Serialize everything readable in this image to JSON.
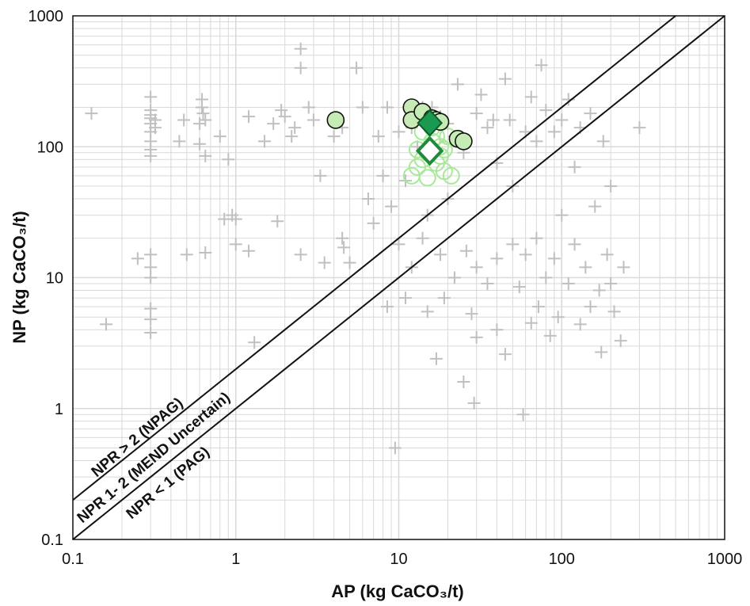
{
  "chart_data": {
    "type": "scatter",
    "xscale": "log",
    "yscale": "log",
    "xlim": [
      0.1,
      1000
    ],
    "ylim": [
      0.1,
      1000
    ],
    "grid": true,
    "xlabel": "AP (kg CaCO₃/t)",
    "ylabel": "NP (kg CaCO₃/t)",
    "xticks": [
      "0.1",
      "1",
      "10",
      "100",
      "1000"
    ],
    "yticks": [
      "0.1",
      "1",
      "10",
      "100",
      "1000"
    ],
    "reference_lines": [
      {
        "label": "NPR > 2 (NPAG)",
        "npr": 2
      },
      {
        "label": "NPR 1- 2 (MEND Uncertain)",
        "npr": null
      },
      {
        "label": "NPR < 1 (PAG)",
        "npr": 1
      }
    ],
    "colors": {
      "background_points": "#c0c0c0",
      "light_green_circles": "#a8e89a",
      "filled_circles": "#c6ebb5",
      "diamond_filled": "#1a9a50",
      "diamond_outline": "#1e8a3a"
    },
    "series": [
      {
        "marker": "plus",
        "points": [
          [
            0.13,
            180
          ],
          [
            0.16,
            4.4
          ],
          [
            0.25,
            14
          ],
          [
            0.3,
            85
          ],
          [
            0.3,
            95
          ],
          [
            0.3,
            110
          ],
          [
            0.3,
            130
          ],
          [
            0.3,
            150
          ],
          [
            0.3,
            165
          ],
          [
            0.3,
            175
          ],
          [
            0.3,
            190
          ],
          [
            0.3,
            240
          ],
          [
            0.3,
            15
          ],
          [
            0.3,
            12
          ],
          [
            0.3,
            10
          ],
          [
            0.3,
            5.8
          ],
          [
            0.3,
            4.8
          ],
          [
            0.3,
            3.8
          ],
          [
            0.32,
            140
          ],
          [
            0.32,
            160
          ],
          [
            0.45,
            110
          ],
          [
            0.48,
            160
          ],
          [
            0.5,
            15
          ],
          [
            0.6,
            150
          ],
          [
            0.6,
            105
          ],
          [
            0.62,
            230
          ],
          [
            0.62,
            200
          ],
          [
            0.63,
            180
          ],
          [
            0.65,
            160
          ],
          [
            0.65,
            85
          ],
          [
            0.65,
            15.5
          ],
          [
            0.8,
            120
          ],
          [
            0.85,
            28
          ],
          [
            0.9,
            80
          ],
          [
            0.95,
            30
          ],
          [
            1.0,
            18
          ],
          [
            1.0,
            28
          ],
          [
            1.2,
            170
          ],
          [
            1.2,
            16
          ],
          [
            1.3,
            3.2
          ],
          [
            1.5,
            110
          ],
          [
            1.7,
            150
          ],
          [
            1.8,
            27
          ],
          [
            1.9,
            190
          ],
          [
            2.0,
            170
          ],
          [
            2.2,
            120
          ],
          [
            2.3,
            140
          ],
          [
            2.5,
            560
          ],
          [
            2.5,
            400
          ],
          [
            2.5,
            15
          ],
          [
            2.8,
            200
          ],
          [
            3.0,
            160
          ],
          [
            3.3,
            60
          ],
          [
            3.5,
            13
          ],
          [
            4.0,
            120
          ],
          [
            4.5,
            20
          ],
          [
            4.6,
            17
          ],
          [
            4.5,
            140
          ],
          [
            5.0,
            13
          ],
          [
            5.5,
            400
          ],
          [
            6.0,
            200
          ],
          [
            6.5,
            40
          ],
          [
            7.0,
            26
          ],
          [
            7.5,
            120
          ],
          [
            8.0,
            60
          ],
          [
            8.5,
            6.0
          ],
          [
            8.5,
            200
          ],
          [
            9.0,
            35
          ],
          [
            9.5,
            0.5
          ],
          [
            10,
            18
          ],
          [
            10,
            130
          ],
          [
            11,
            7.0
          ],
          [
            11,
            55
          ],
          [
            12,
            12
          ],
          [
            12,
            140
          ],
          [
            13,
            100
          ],
          [
            14,
            20
          ],
          [
            14,
            200
          ],
          [
            15,
            30
          ],
          [
            15,
            5.5
          ],
          [
            16,
            200
          ],
          [
            17,
            2.4
          ],
          [
            18,
            170
          ],
          [
            18,
            15
          ],
          [
            19,
            7
          ],
          [
            20,
            40
          ],
          [
            20,
            150
          ],
          [
            22,
            120
          ],
          [
            22,
            10
          ],
          [
            23,
            300
          ],
          [
            25,
            1.6
          ],
          [
            25,
            90
          ],
          [
            26,
            16
          ],
          [
            28,
            5.3
          ],
          [
            29,
            1.1
          ],
          [
            30,
            180
          ],
          [
            30,
            12
          ],
          [
            30,
            3.5
          ],
          [
            32,
            250
          ],
          [
            35,
            140
          ],
          [
            35,
            9
          ],
          [
            38,
            160
          ],
          [
            40,
            4.0
          ],
          [
            40,
            75
          ],
          [
            40,
            14
          ],
          [
            45,
            2.6
          ],
          [
            45,
            330
          ],
          [
            48,
            160
          ],
          [
            50,
            50
          ],
          [
            50,
            18
          ],
          [
            55,
            8.5
          ],
          [
            58,
            0.9
          ],
          [
            60,
            15
          ],
          [
            60,
            130
          ],
          [
            65,
            4.5
          ],
          [
            65,
            240
          ],
          [
            70,
            110
          ],
          [
            70,
            20
          ],
          [
            72,
            6
          ],
          [
            75,
            420
          ],
          [
            80,
            190
          ],
          [
            80,
            10
          ],
          [
            85,
            3.6
          ],
          [
            90,
            130
          ],
          [
            90,
            14
          ],
          [
            95,
            5
          ],
          [
            100,
            30
          ],
          [
            100,
            160
          ],
          [
            110,
            9
          ],
          [
            110,
            230
          ],
          [
            120,
            18
          ],
          [
            120,
            70
          ],
          [
            130,
            4.4
          ],
          [
            130,
            140
          ],
          [
            140,
            12
          ],
          [
            150,
            6
          ],
          [
            150,
            180
          ],
          [
            160,
            35
          ],
          [
            170,
            8
          ],
          [
            175,
            2.7
          ],
          [
            180,
            110
          ],
          [
            190,
            15
          ],
          [
            200,
            50
          ],
          [
            200,
            9
          ],
          [
            210,
            5.5
          ],
          [
            230,
            3.3
          ],
          [
            240,
            12
          ],
          [
            300,
            140
          ]
        ]
      },
      {
        "marker": "open-circle",
        "points": [
          [
            12,
            60
          ],
          [
            13,
            70
          ],
          [
            14,
            80
          ],
          [
            15,
            58
          ],
          [
            15,
            90
          ],
          [
            16,
            110
          ],
          [
            17,
            75
          ],
          [
            18,
            100
          ],
          [
            19,
            65
          ],
          [
            20,
            120
          ],
          [
            14,
            130
          ],
          [
            16,
            140
          ],
          [
            18,
            85
          ],
          [
            13,
            95
          ],
          [
            21,
            60
          ],
          [
            17,
            120
          ],
          [
            19,
            95
          ]
        ]
      },
      {
        "marker": "filled-circle",
        "points": [
          [
            4.1,
            160
          ],
          [
            12,
            200
          ],
          [
            12,
            160
          ],
          [
            14,
            185
          ],
          [
            16,
            165
          ],
          [
            17,
            160
          ],
          [
            18,
            155
          ],
          [
            23,
            115
          ],
          [
            25,
            110
          ]
        ]
      },
      {
        "marker": "filled-diamond",
        "points": [
          [
            15.5,
            152
          ]
        ]
      },
      {
        "marker": "open-diamond",
        "points": [
          [
            15.5,
            93
          ]
        ]
      }
    ]
  }
}
